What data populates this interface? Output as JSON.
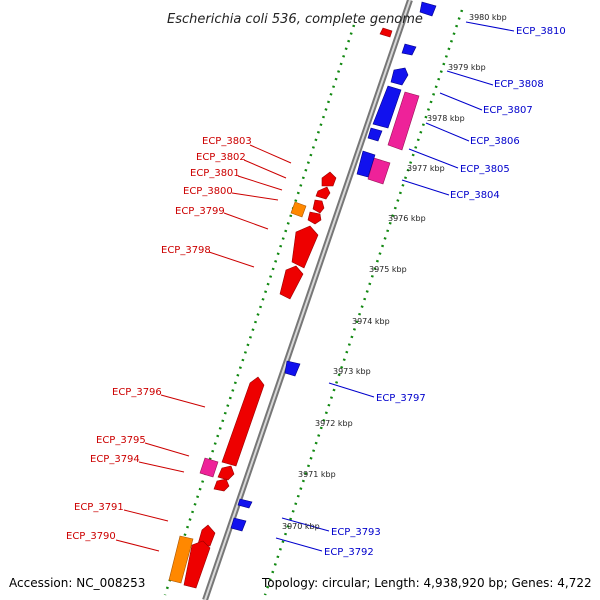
{
  "title": "Escherichia coli 536, complete genome",
  "accession": "Accession: NC_008253",
  "topology": "Topology: circular; Length: 4,938,920 bp; Genes: 4,722",
  "colors": {
    "backbone": "#888888",
    "ruler_dots": "#118811",
    "left_label": "#cc0000",
    "right_label": "#0000cc",
    "gene_red": "#ee0000",
    "gene_blue": "#1111ee",
    "gene_pink": "#ee2299",
    "gene_orange": "#ff8800"
  },
  "ticks": [
    "3980 kbp",
    "3979 kbp",
    "3978 kbp",
    "3977 kbp",
    "3976 kbp",
    "3975 kbp",
    "3974 kbp",
    "3973 kbp",
    "3972 kbp",
    "3971 kbp",
    "3970 kbp"
  ],
  "genes_left": [
    "ECP_3803",
    "ECP_3802",
    "ECP_3801",
    "ECP_3800",
    "ECP_3799",
    "ECP_3798",
    "ECP_3796",
    "ECP_3795",
    "ECP_3794",
    "ECP_3791",
    "ECP_3790"
  ],
  "genes_right": [
    "ECP_3810",
    "ECP_3808",
    "ECP_3807",
    "ECP_3806",
    "ECP_3805",
    "ECP_3804",
    "ECP_3797",
    "ECP_3793",
    "ECP_3792"
  ]
}
